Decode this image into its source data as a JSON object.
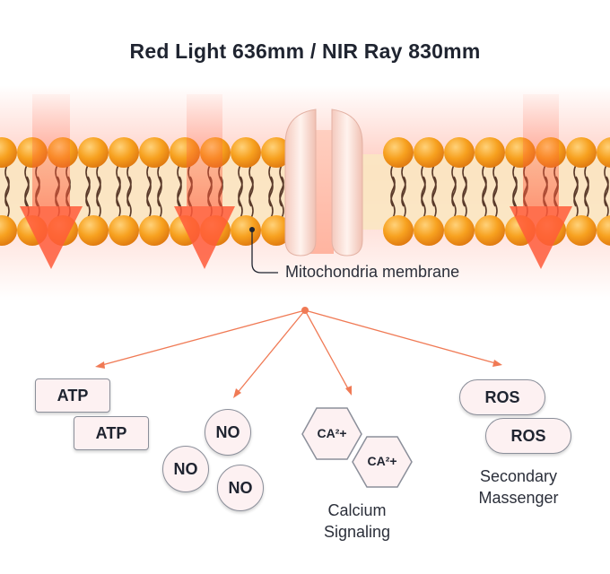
{
  "title": "Red Light 636mm / NIR Ray 830mm",
  "membrane_label": "Mitochondria membrane",
  "products": {
    "atp": [
      "ATP",
      "ATP"
    ],
    "no": [
      "NO",
      "NO",
      "NO"
    ],
    "calcium": [
      "CA²+",
      "CA²+"
    ],
    "ros": [
      "ROS",
      "ROS"
    ]
  },
  "calcium_label_line1": "Calcium",
  "calcium_label_line2": "Signaling",
  "ros_label_line1": "Secondary",
  "ros_label_line2": "Massenger",
  "colors": {
    "lipid_head": "#f59a1c",
    "light_arrow": "#ff5a3a",
    "connector": "#f07a55",
    "box_fill": "#fdf1f2"
  }
}
